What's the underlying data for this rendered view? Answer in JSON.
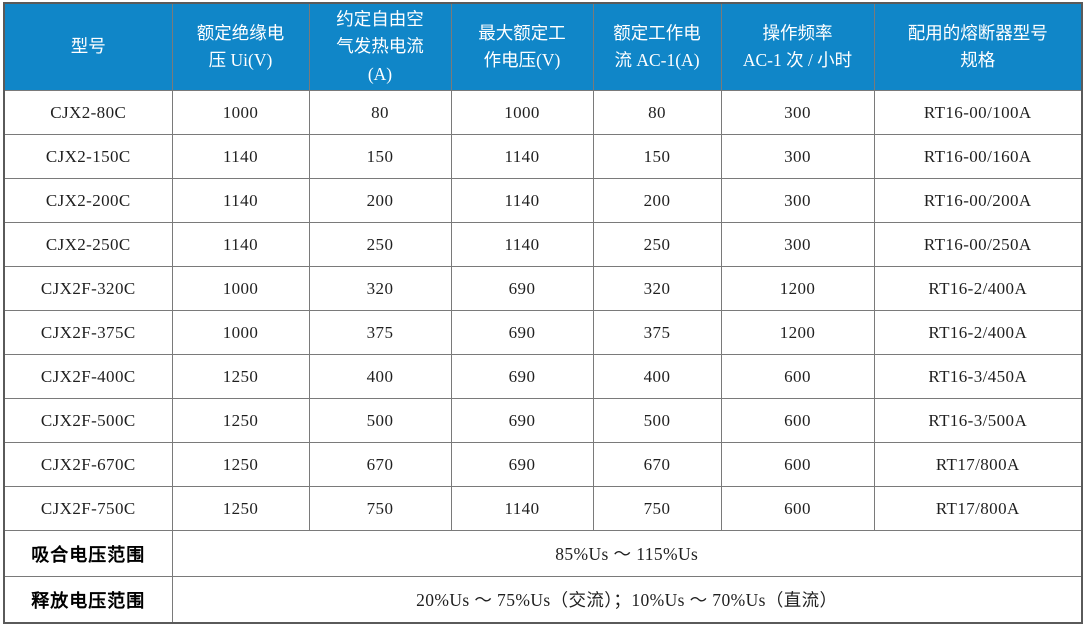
{
  "table": {
    "header_bg": "#1086c8",
    "header_text_color": "#ffffff",
    "border_outer_color": "#5a5a5a",
    "border_inner_color": "#7a7a7a",
    "columns": [
      {
        "label": "型号"
      },
      {
        "label": "额定绝缘电\n压 Ui(V)"
      },
      {
        "label": "约定自由空\n气发热电流\n(A)"
      },
      {
        "label": "最大额定工\n作电压(V)"
      },
      {
        "label": "额定工作电\n流 AC-1(A)"
      },
      {
        "label": "操作频率\nAC-1 次 / 小时"
      },
      {
        "label": "配用的熔断器型号\n规格"
      }
    ],
    "rows": [
      [
        "CJX2-80C",
        "1000",
        "80",
        "1000",
        "80",
        "300",
        "RT16-00/100A"
      ],
      [
        "CJX2-150C",
        "1140",
        "150",
        "1140",
        "150",
        "300",
        "RT16-00/160A"
      ],
      [
        "CJX2-200C",
        "1140",
        "200",
        "1140",
        "200",
        "300",
        "RT16-00/200A"
      ],
      [
        "CJX2-250C",
        "1140",
        "250",
        "1140",
        "250",
        "300",
        "RT16-00/250A"
      ],
      [
        "CJX2F-320C",
        "1000",
        "320",
        "690",
        "320",
        "1200",
        "RT16-2/400A"
      ],
      [
        "CJX2F-375C",
        "1000",
        "375",
        "690",
        "375",
        "1200",
        "RT16-2/400A"
      ],
      [
        "CJX2F-400C",
        "1250",
        "400",
        "690",
        "400",
        "600",
        "RT16-3/450A"
      ],
      [
        "CJX2F-500C",
        "1250",
        "500",
        "690",
        "500",
        "600",
        "RT16-3/500A"
      ],
      [
        "CJX2F-670C",
        "1250",
        "670",
        "690",
        "670",
        "600",
        "RT17/800A"
      ],
      [
        "CJX2F-750C",
        "1250",
        "750",
        "1140",
        "750",
        "600",
        "RT17/800A"
      ]
    ],
    "footer_rows": [
      {
        "label": "吸合电压范围",
        "value": "85%Us ～ 115%Us"
      },
      {
        "label": "释放电压范围",
        "value": "20%Us ～ 75%Us（交流）；10%Us ～ 70%Us（直流）"
      }
    ]
  }
}
